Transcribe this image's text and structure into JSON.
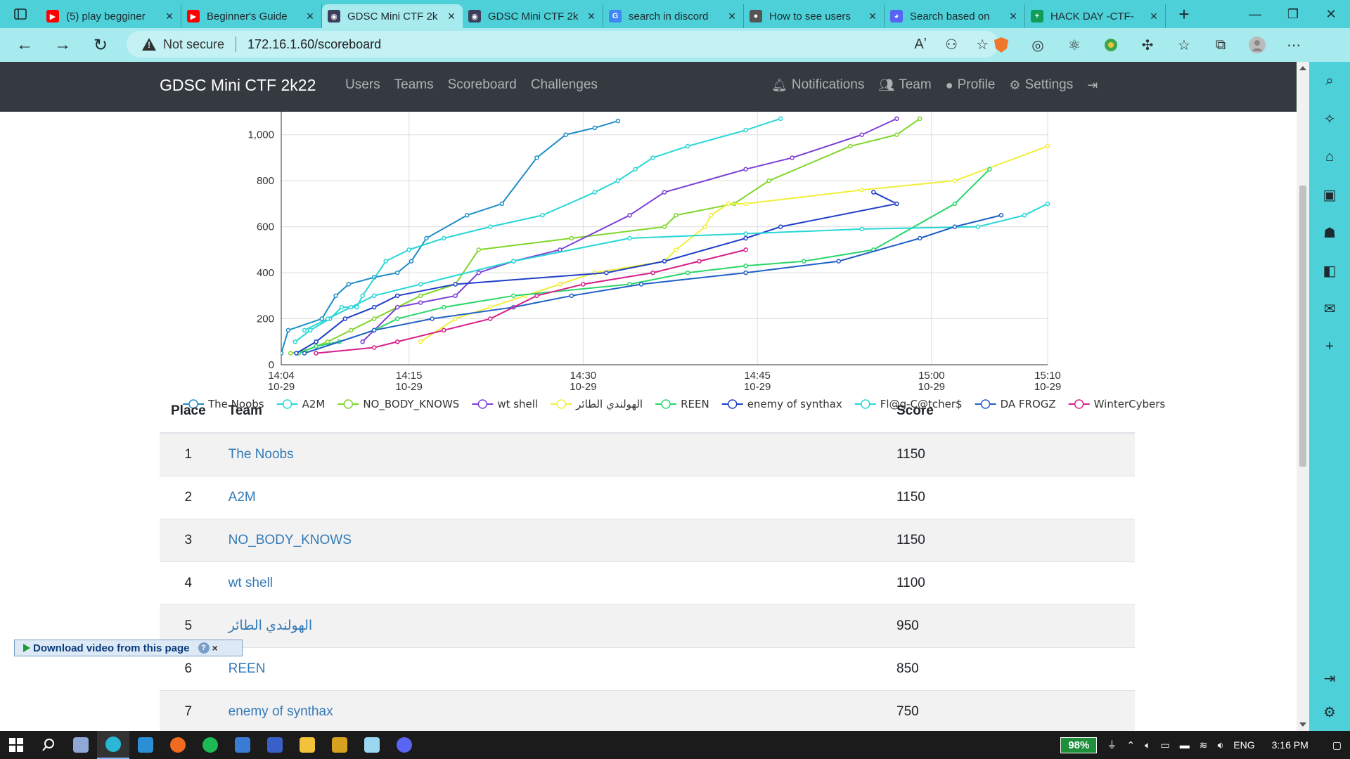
{
  "browser": {
    "tabs": [
      {
        "title": "(5) play begginer",
        "icon": "youtube-icon",
        "color": "#ff0000",
        "glyph": "▶",
        "active": false
      },
      {
        "title": "Beginner's Guide",
        "icon": "youtube-icon",
        "color": "#ff0000",
        "glyph": "▶",
        "active": false
      },
      {
        "title": "GDSC Mini CTF 2k",
        "icon": "gdsc-ctf-icon",
        "color": "#3d3d5c",
        "glyph": "◉",
        "active": true
      },
      {
        "title": "GDSC Mini CTF 2k",
        "icon": "gdsc-ctf-icon",
        "color": "#3d3d5c",
        "glyph": "◉",
        "active": false
      },
      {
        "title": "search in discord",
        "icon": "google-icon",
        "color": "#4285f4",
        "glyph": "G",
        "active": false
      },
      {
        "title": "How to see users",
        "icon": "reddit-icon",
        "color": "#555555",
        "glyph": "●",
        "active": false
      },
      {
        "title": "Search based on",
        "icon": "discord-icon",
        "color": "#5865f2",
        "glyph": "◕",
        "active": false
      },
      {
        "title": "HACK DAY -CTF-",
        "icon": "sheets-icon",
        "color": "#0f9d58",
        "glyph": "+",
        "active": false
      }
    ],
    "address": {
      "security": "Not secure",
      "url": "172.16.1.60/scoreboard"
    }
  },
  "site": {
    "brand": "GDSC Mini CTF 2k22",
    "nav_left": [
      "Users",
      "Teams",
      "Scoreboard",
      "Challenges"
    ],
    "nav_right": {
      "notifications": "Notifications",
      "team": "Team",
      "profile": "Profile",
      "settings": "Settings"
    }
  },
  "chart_data": {
    "type": "line",
    "y_ticks": [
      "0",
      "200",
      "400",
      "600",
      "800",
      "1,000"
    ],
    "ylim": [
      0,
      1100
    ],
    "x_ticks": [
      {
        "time": "14:04",
        "date": "10-29",
        "min": 0
      },
      {
        "time": "14:15",
        "date": "10-29",
        "min": 11
      },
      {
        "time": "14:30",
        "date": "10-29",
        "min": 26
      },
      {
        "time": "14:45",
        "date": "10-29",
        "min": 41
      },
      {
        "time": "15:00",
        "date": "10-29",
        "min": 56
      },
      {
        "time": "15:10",
        "date": "10-29",
        "min": 66
      }
    ],
    "series": [
      {
        "name": "The Noobs",
        "color": "#1f8dc8",
        "points": [
          [
            0,
            50
          ],
          [
            0.6,
            150
          ],
          [
            3.5,
            200
          ],
          [
            4.7,
            300
          ],
          [
            5.8,
            350
          ],
          [
            8,
            380
          ],
          [
            10,
            400
          ],
          [
            11.2,
            450
          ],
          [
            12.5,
            550
          ],
          [
            16,
            650
          ],
          [
            19,
            700
          ],
          [
            22,
            900
          ],
          [
            24.5,
            1000
          ],
          [
            27,
            1030
          ],
          [
            29,
            1060
          ]
        ]
      },
      {
        "name": "A2M",
        "color": "#28d6d6",
        "points": [
          [
            1.2,
            100
          ],
          [
            2.5,
            150
          ],
          [
            4.2,
            200
          ],
          [
            5.2,
            250
          ],
          [
            6.5,
            250
          ],
          [
            7,
            300
          ],
          [
            9,
            450
          ],
          [
            11,
            500
          ],
          [
            14,
            550
          ],
          [
            18,
            600
          ],
          [
            22.5,
            650
          ],
          [
            27,
            750
          ],
          [
            29,
            800
          ],
          [
            30.5,
            850
          ],
          [
            32,
            900
          ],
          [
            35,
            950
          ],
          [
            40,
            1020
          ],
          [
            43,
            1070
          ]
        ]
      },
      {
        "name": "NO_BODY_KNOWS",
        "color": "#7fd62a",
        "points": [
          [
            0.8,
            50
          ],
          [
            2,
            60
          ],
          [
            4,
            100
          ],
          [
            6,
            150
          ],
          [
            8,
            200
          ],
          [
            10,
            250
          ],
          [
            12,
            300
          ],
          [
            15,
            350
          ],
          [
            17,
            500
          ],
          [
            25,
            550
          ],
          [
            33,
            600
          ],
          [
            34,
            650
          ],
          [
            39,
            700
          ],
          [
            42,
            800
          ],
          [
            49,
            950
          ],
          [
            53,
            1000
          ],
          [
            55,
            1070
          ]
        ]
      },
      {
        "name": "wt shell",
        "color": "#7b3fd6",
        "points": [
          [
            7,
            100
          ],
          [
            8,
            150
          ],
          [
            10,
            250
          ],
          [
            12,
            270
          ],
          [
            15,
            300
          ],
          [
            17,
            400
          ],
          [
            20,
            450
          ],
          [
            24,
            500
          ],
          [
            30,
            650
          ],
          [
            33,
            750
          ],
          [
            40,
            850
          ],
          [
            44,
            900
          ],
          [
            50,
            1000
          ],
          [
            53,
            1070
          ]
        ]
      },
      {
        "name": "الهولندي الطائر",
        "color": "#f0ef3a",
        "points": [
          [
            12,
            100
          ],
          [
            15,
            200
          ],
          [
            18,
            250
          ],
          [
            21,
            300
          ],
          [
            24,
            350
          ],
          [
            27,
            400
          ],
          [
            33,
            450
          ],
          [
            34,
            500
          ],
          [
            36.5,
            600
          ],
          [
            37,
            650
          ],
          [
            38.5,
            700
          ],
          [
            40,
            700
          ],
          [
            50,
            760
          ],
          [
            58,
            800
          ],
          [
            66,
            950
          ]
        ]
      },
      {
        "name": "REEN",
        "color": "#2ad66a",
        "points": [
          [
            1.5,
            50
          ],
          [
            3,
            80
          ],
          [
            5,
            100
          ],
          [
            8,
            150
          ],
          [
            10,
            200
          ],
          [
            14,
            250
          ],
          [
            20,
            300
          ],
          [
            30,
            350
          ],
          [
            35,
            400
          ],
          [
            40,
            430
          ],
          [
            45,
            450
          ],
          [
            51,
            500
          ],
          [
            58,
            700
          ],
          [
            61,
            850
          ]
        ]
      },
      {
        "name": "enemy of synthax",
        "color": "#1f3fc8",
        "points": [
          [
            1.3,
            50
          ],
          [
            3,
            100
          ],
          [
            5.5,
            200
          ],
          [
            8,
            250
          ],
          [
            10,
            300
          ],
          [
            15,
            350
          ],
          [
            28,
            400
          ],
          [
            33,
            450
          ],
          [
            40,
            550
          ],
          [
            43,
            600
          ],
          [
            53,
            700
          ],
          [
            51,
            750
          ]
        ]
      },
      {
        "name": "Fl@g-C@tcher$",
        "color": "#28d6d6",
        "points": [
          [
            2,
            150
          ],
          [
            4,
            200
          ],
          [
            6,
            250
          ],
          [
            8,
            300
          ],
          [
            12,
            350
          ],
          [
            20,
            450
          ],
          [
            30,
            550
          ],
          [
            40,
            570
          ],
          [
            50,
            590
          ],
          [
            60,
            600
          ],
          [
            64,
            650
          ],
          [
            66,
            700
          ]
        ]
      },
      {
        "name": "DA FROGZ",
        "color": "#1f5fc8",
        "points": [
          [
            2,
            50
          ],
          [
            8,
            150
          ],
          [
            13,
            200
          ],
          [
            20,
            250
          ],
          [
            25,
            300
          ],
          [
            31,
            350
          ],
          [
            40,
            400
          ],
          [
            48,
            450
          ],
          [
            55,
            550
          ],
          [
            58,
            600
          ],
          [
            62,
            650
          ]
        ]
      },
      {
        "name": "WinterCybers",
        "color": "#d61f8a",
        "points": [
          [
            3,
            50
          ],
          [
            8,
            75
          ],
          [
            10,
            100
          ],
          [
            14,
            150
          ],
          [
            18,
            200
          ],
          [
            22,
            300
          ],
          [
            26,
            350
          ],
          [
            32,
            400
          ],
          [
            36,
            450
          ],
          [
            40,
            500
          ]
        ]
      }
    ]
  },
  "table": {
    "headers": {
      "place": "Place",
      "team": "Team",
      "score": "Score"
    },
    "rows": [
      {
        "place": "1",
        "team": "The Noobs",
        "score": "1150"
      },
      {
        "place": "2",
        "team": "A2M",
        "score": "1150"
      },
      {
        "place": "3",
        "team": "NO_BODY_KNOWS",
        "score": "1150"
      },
      {
        "place": "4",
        "team": "wt shell",
        "score": "1100"
      },
      {
        "place": "5",
        "team": "الهولندي الطائر",
        "score": "950"
      },
      {
        "place": "6",
        "team": "REEN",
        "score": "850"
      },
      {
        "place": "7",
        "team": "enemy of synthax",
        "score": "750"
      }
    ]
  },
  "overlay": {
    "download_label": "Download video from this page",
    "help": "?",
    "close": "×"
  },
  "taskbar": {
    "apps": [
      {
        "name": "start-icon",
        "color": "#ffffff"
      },
      {
        "name": "search-icon",
        "color": "#ffffff"
      },
      {
        "name": "visual-studio-icon",
        "color": "#8fa8d6"
      },
      {
        "name": "edge-icon",
        "color": "#2ab7d6",
        "active": true
      },
      {
        "name": "vscode-icon",
        "color": "#2b8fd6"
      },
      {
        "name": "app-orange-icon",
        "color": "#f06a1f"
      },
      {
        "name": "spotify-icon",
        "color": "#1db954"
      },
      {
        "name": "app-blue-icon",
        "color": "#3a7bd5"
      },
      {
        "name": "powershell-icon",
        "color": "#3a5fc8"
      },
      {
        "name": "file-explorer-icon",
        "color": "#f2c23a"
      },
      {
        "name": "app-yellow-icon",
        "color": "#d6a21f"
      },
      {
        "name": "notepad-icon",
        "color": "#9ad6f0"
      },
      {
        "name": "discord-icon",
        "color": "#5865f2"
      }
    ],
    "battery": "98%",
    "language": "ENG",
    "time": "3:16 PM"
  }
}
